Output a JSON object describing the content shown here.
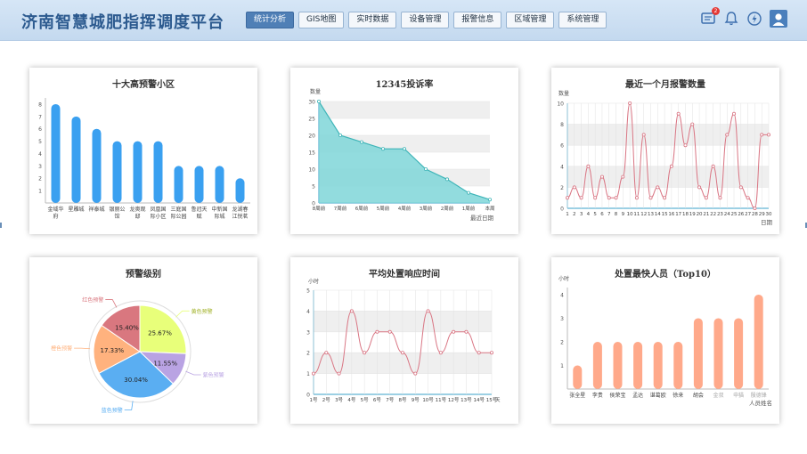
{
  "app": {
    "title": "济南智慧城肥指挥调度平台"
  },
  "nav": [
    {
      "label": "统计分析",
      "active": true
    },
    {
      "label": "GIS地图"
    },
    {
      "label": "实时数据"
    },
    {
      "label": "设备管理"
    },
    {
      "label": "报警信息"
    },
    {
      "label": "区域管理"
    },
    {
      "label": "系统管理"
    }
  ],
  "header_icons": {
    "message_badge": "2",
    "icons": [
      "message-icon",
      "bell-icon",
      "lightning-icon",
      "user-icon"
    ]
  },
  "colors": {
    "blue_bar": "#3aa0f0",
    "teal_area": "#7fd6d8",
    "red_line": "#d97684",
    "orange_bar": "#ffa98a"
  },
  "chart_data": [
    {
      "type": "bar",
      "title": "十大高预警小区",
      "categories": [
        "金域华府",
        "星雕城",
        "祥泰城",
        "银丽公馆",
        "龙奥观邸",
        "凤凰国际小区",
        "三庭国际公园",
        "鲁冠天赋",
        "中新国际城",
        "龙湖春江悦茗"
      ],
      "values": [
        8,
        7,
        6,
        5,
        5,
        5,
        3,
        3,
        3,
        2
      ],
      "yticks": [
        "1",
        "2",
        "3",
        "4",
        "5",
        "6",
        "7",
        "8"
      ],
      "ylim": [
        0,
        8.5
      ]
    },
    {
      "type": "area",
      "title": "12345投诉率",
      "ylabel": "数量",
      "xlabel": "最近日期",
      "categories": [
        "8周前",
        "7周前",
        "6周前",
        "5周前",
        "4周前",
        "3周前",
        "2周前",
        "1周前",
        "本周"
      ],
      "values": [
        30,
        20,
        18,
        16,
        16,
        10,
        7,
        3,
        1
      ],
      "yticks": [
        "0",
        "5",
        "10",
        "15",
        "20",
        "25",
        "30"
      ],
      "ylim": [
        0,
        30
      ]
    },
    {
      "type": "line",
      "title": "最近一个月报警数量",
      "ylabel": "数量",
      "xlabel": "日期",
      "categories": [
        "1",
        "2",
        "3",
        "4",
        "5",
        "6",
        "7",
        "8",
        "9",
        "10",
        "11",
        "12",
        "13",
        "14",
        "15",
        "16",
        "17",
        "18",
        "19",
        "20",
        "21",
        "22",
        "23",
        "24",
        "25",
        "26",
        "27",
        "28",
        "29",
        "30"
      ],
      "values": [
        1,
        2,
        1,
        4,
        1,
        3,
        1,
        1,
        3,
        10,
        1,
        7,
        1,
        2,
        1,
        4,
        9,
        6,
        8,
        2,
        1,
        4,
        1,
        7,
        9,
        2,
        1,
        0,
        7,
        7
      ],
      "yticks": [
        "0",
        "2",
        "4",
        "6",
        "8",
        "10"
      ],
      "ylim": [
        0,
        10
      ]
    },
    {
      "type": "pie",
      "title": "预警级别",
      "slices": [
        {
          "name": "黄色预警",
          "value": 25.67,
          "label": "25.67%",
          "color": "#e8ff7a"
        },
        {
          "name": "紫色预警",
          "value": 11.55,
          "label": "11.55%",
          "color": "#b9a3e3"
        },
        {
          "name": "蓝色预警",
          "value": 30.04,
          "label": "30.04%",
          "color": "#5aaef2"
        },
        {
          "name": "橙色预警",
          "value": 17.33,
          "label": "17.33%",
          "color": "#ffb27e"
        },
        {
          "name": "红色预警",
          "value": 15.4,
          "label": "15.40%",
          "color": "#d9777f"
        }
      ]
    },
    {
      "type": "line",
      "title": "平均处置响应时间",
      "ylabel": "小时",
      "categories": [
        "1号",
        "2号",
        "3号",
        "4号",
        "5号",
        "6号",
        "7号",
        "8号",
        "9号",
        "10号",
        "11号",
        "12号",
        "13号",
        "14号",
        "15号"
      ],
      "values": [
        1,
        2,
        1,
        4,
        2,
        3,
        3,
        2,
        1,
        4,
        2,
        3,
        3,
        2,
        2
      ],
      "yticks": [
        "0",
        "1",
        "2",
        "3",
        "4",
        "5"
      ],
      "ylim": [
        0,
        5
      ],
      "suffix": "天"
    },
    {
      "type": "bar",
      "title": "处置最快人员（Top10）",
      "ylabel": "小时",
      "xlabel": "人员姓名",
      "categories": [
        "张全星",
        "李贵",
        "侯荣宝",
        "孟达",
        "谌葛欧",
        "徐来",
        "胡会",
        "金叔",
        "申猫",
        "殷德锋"
      ],
      "values": [
        1,
        2,
        2,
        2,
        2,
        2,
        3,
        3,
        3,
        4
      ],
      "yticks": [
        "1",
        "2",
        "3",
        "4"
      ],
      "ylim": [
        0,
        4.3
      ]
    }
  ]
}
